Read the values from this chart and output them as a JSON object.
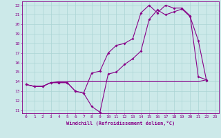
{
  "xlabel": "Windchill (Refroidissement éolien,°C)",
  "bg_color": "#cce9e9",
  "grid_color": "#aad4d4",
  "line_color": "#880088",
  "xlim_min": -0.5,
  "xlim_max": 23.5,
  "ylim_min": 10.7,
  "ylim_max": 22.4,
  "yticks": [
    11,
    12,
    13,
    14,
    15,
    16,
    17,
    18,
    19,
    20,
    21,
    22
  ],
  "xticks": [
    0,
    1,
    2,
    3,
    4,
    5,
    6,
    7,
    8,
    9,
    10,
    11,
    12,
    13,
    14,
    15,
    16,
    17,
    18,
    19,
    20,
    21,
    22,
    23
  ],
  "line1_x": [
    0,
    1,
    2,
    3,
    4,
    5,
    6,
    7,
    8,
    9,
    10,
    11,
    12,
    13,
    14,
    15,
    16,
    17,
    18,
    19,
    20,
    21,
    22
  ],
  "line1_y": [
    13.7,
    13.5,
    13.5,
    13.9,
    13.9,
    13.9,
    13.0,
    12.8,
    11.4,
    10.8,
    14.8,
    15.0,
    15.8,
    16.4,
    17.2,
    20.5,
    21.5,
    21.0,
    21.3,
    21.6,
    20.8,
    18.3,
    14.1
  ],
  "line2_x": [
    0,
    1,
    2,
    3,
    4,
    5,
    6,
    7,
    8,
    9,
    10,
    11,
    12,
    13,
    14,
    15,
    16,
    17,
    18,
    19,
    20,
    21,
    22
  ],
  "line2_y": [
    13.7,
    13.5,
    13.5,
    13.9,
    13.9,
    13.9,
    13.0,
    12.8,
    14.9,
    15.1,
    17.0,
    17.8,
    18.0,
    18.5,
    21.2,
    22.0,
    21.2,
    22.0,
    21.7,
    21.7,
    20.9,
    14.5,
    14.2
  ],
  "line3_x": [
    0,
    1,
    2,
    3,
    4,
    5,
    6,
    7,
    8,
    9,
    10,
    11,
    12,
    13,
    14,
    15,
    16,
    17,
    18,
    19,
    20,
    21,
    22
  ],
  "line3_y": [
    13.7,
    13.5,
    13.5,
    13.9,
    14.0,
    14.0,
    14.0,
    14.0,
    14.0,
    14.0,
    14.0,
    14.0,
    14.0,
    14.0,
    14.0,
    14.0,
    14.0,
    14.0,
    14.0,
    14.0,
    14.0,
    14.0,
    14.2
  ],
  "xlabel_fontsize": 5.0,
  "tick_fontsize": 4.5
}
